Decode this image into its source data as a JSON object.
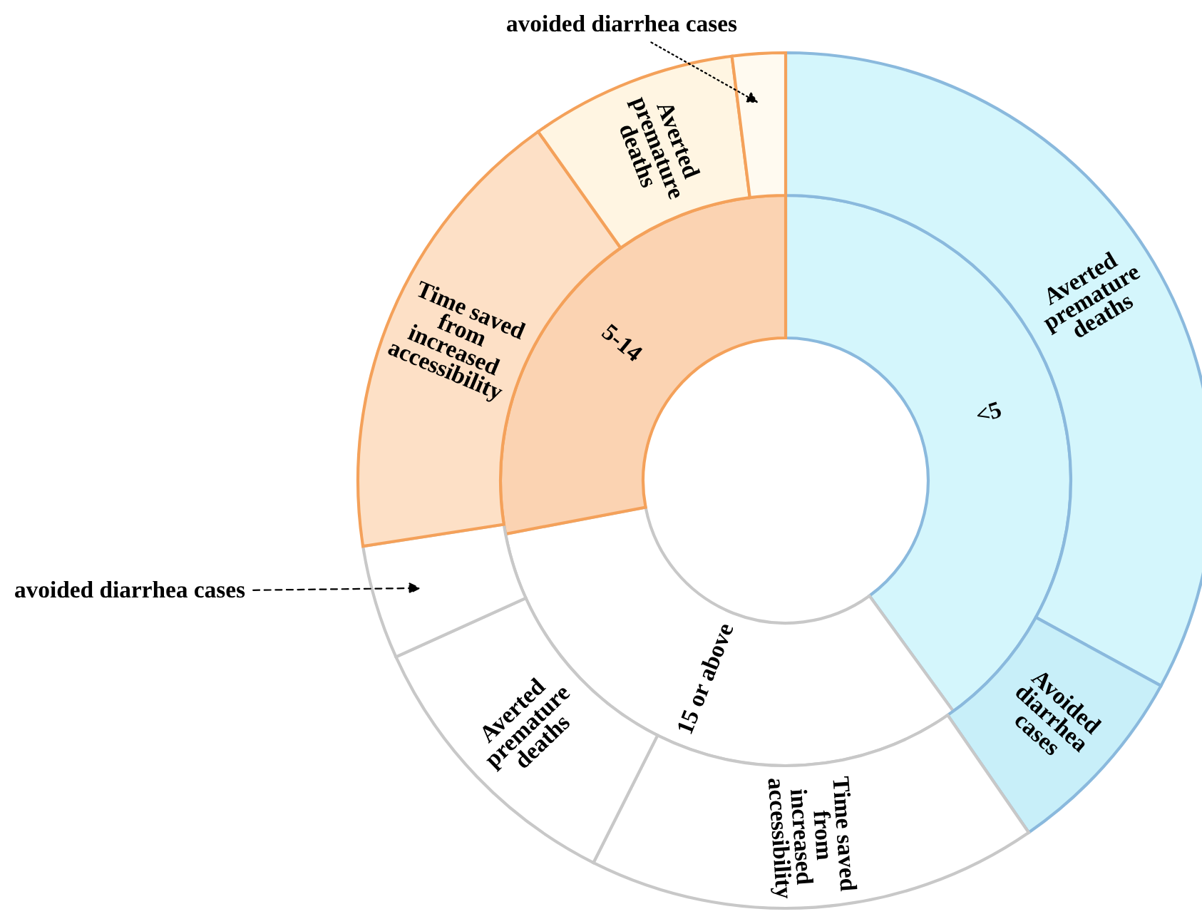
{
  "chart_data": {
    "type": "donut",
    "categories": [
      "Averted\npremature\ndeaths",
      "Avoided\ndiarrhea\ncases",
      "Time saved\nfrom\nincreased\naccessibility",
      "Averted\npremature\ndeaths",
      "avoided diarrhea cases",
      "Time saved\nfrom\nincreased\naccessibility",
      "Averted\npremature\ndeaths",
      "avoided diarrhea cases"
    ],
    "annotations": [
      "<5",
      "15 or above",
      "5-14"
    ],
    "series": [
      {
        "values": [
          32.9,
          7.4,
          17.0,
          10.8,
          4.3,
          17.6,
          7.8,
          2.0
        ],
        "colors": [
          "#d4f6fc",
          "#c8eff9",
          "#ffffff",
          "#ffffff",
          "#ffffff",
          "#fde0c6",
          "#fff5e2",
          "#fffaf0"
        ]
      },
      {
        "values": [
          40,
          32,
          28,
          null,
          null,
          null,
          null,
          null
        ],
        "colors": [
          "#d4f6fc",
          "#ffffff",
          "#fbd3b2",
          null,
          null,
          null,
          null,
          null
        ]
      }
    ]
  }
}
